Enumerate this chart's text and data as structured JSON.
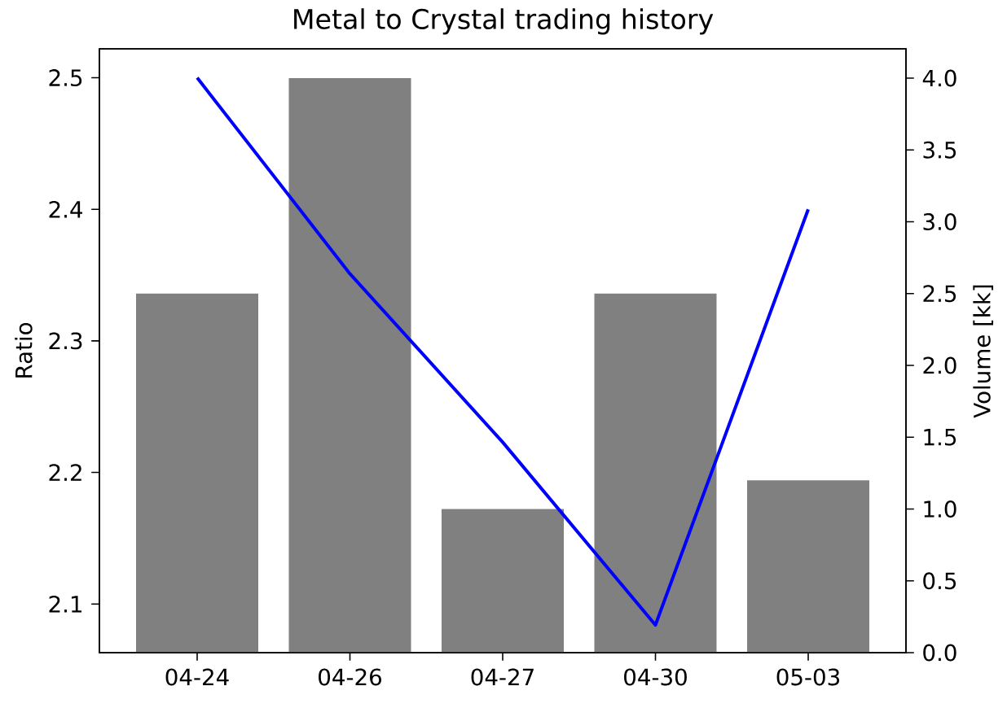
{
  "chart_data": {
    "type": "bar",
    "title": "Metal to Crystal trading history",
    "ylabel": "Ratio",
    "y2label": "Volume [kk]",
    "categories": [
      "04-24",
      "04-26",
      "04-27",
      "04-30",
      "05-03"
    ],
    "ylim": [
      2.063,
      2.522
    ],
    "yticks": [
      2.1,
      2.2,
      2.3,
      2.4,
      2.5
    ],
    "y2lim": [
      0,
      4.204
    ],
    "y2ticks": [
      {
        "value": 0,
        "label": "0.0"
      },
      0.5,
      {
        "value": 1,
        "label": "1.0"
      },
      1.5,
      {
        "value": 2,
        "label": "2.0"
      },
      2.5,
      {
        "value": 3,
        "label": "3.0"
      },
      3.5,
      {
        "value": 4,
        "label": "4.0"
      }
    ],
    "series": [
      {
        "axis": "y2",
        "color": "#808080",
        "values": [
          2.5,
          4.0,
          1.0,
          2.5,
          1.2
        ]
      },
      {
        "type": "line",
        "color": "#0000ff",
        "values": [
          2.5,
          2.351,
          2.223,
          2.084,
          2.4
        ]
      }
    ]
  }
}
